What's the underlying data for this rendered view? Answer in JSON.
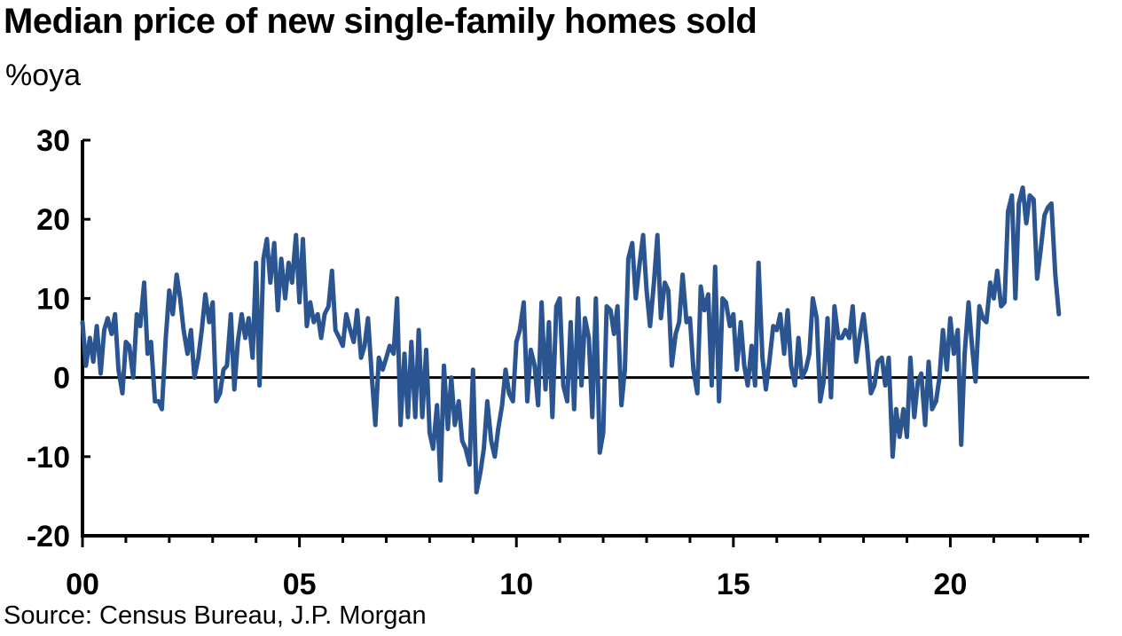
{
  "title": "Median price of new single-family homes sold",
  "subtitle": "%oya",
  "source": "Source: Census Bureau, J.P. Morgan",
  "chart_data": {
    "type": "line",
    "title": "Median price of new single-family homes sold",
    "ylabel": "%oya",
    "xlabel": "",
    "ylim": [
      -20,
      30
    ],
    "xlim": [
      2000,
      2023.2
    ],
    "yticks": [
      30,
      20,
      10,
      0,
      -10,
      -20
    ],
    "xticks": [
      {
        "value": 2000,
        "label": "00"
      },
      {
        "value": 2005,
        "label": "05"
      },
      {
        "value": 2010,
        "label": "10"
      },
      {
        "value": 2015,
        "label": "15"
      },
      {
        "value": 2020,
        "label": "20"
      }
    ],
    "grid": false,
    "legend": "none",
    "color": "#2b5591",
    "series": [
      {
        "x": [
          2000.0,
          2000.08,
          2000.17,
          2000.25,
          2000.33,
          2000.42,
          2000.5,
          2000.58,
          2000.67,
          2000.75,
          2000.83,
          2000.92,
          2001.0,
          2001.08,
          2001.17,
          2001.25,
          2001.33,
          2001.42,
          2001.5,
          2001.58,
          2001.67,
          2001.75,
          2001.83,
          2001.92,
          2002.0,
          2002.08,
          2002.17,
          2002.25,
          2002.33,
          2002.42,
          2002.5,
          2002.58,
          2002.67,
          2002.75,
          2002.83,
          2002.92,
          2003.0,
          2003.08,
          2003.17,
          2003.25,
          2003.33,
          2003.42,
          2003.5,
          2003.58,
          2003.67,
          2003.75,
          2003.83,
          2003.92,
          2004.0,
          2004.08,
          2004.17,
          2004.25,
          2004.33,
          2004.42,
          2004.5,
          2004.58,
          2004.67,
          2004.75,
          2004.83,
          2004.92,
          2005.0,
          2005.08,
          2005.17,
          2005.25,
          2005.33,
          2005.42,
          2005.5,
          2005.58,
          2005.67,
          2005.75,
          2005.83,
          2005.92,
          2006.0,
          2006.08,
          2006.17,
          2006.25,
          2006.33,
          2006.42,
          2006.5,
          2006.58,
          2006.67,
          2006.75,
          2006.83,
          2006.92,
          2007.0,
          2007.08,
          2007.17,
          2007.25,
          2007.33,
          2007.42,
          2007.5,
          2007.58,
          2007.67,
          2007.75,
          2007.83,
          2007.92,
          2008.0,
          2008.08,
          2008.17,
          2008.25,
          2008.33,
          2008.42,
          2008.5,
          2008.58,
          2008.67,
          2008.75,
          2008.83,
          2008.92,
          2009.0,
          2009.08,
          2009.17,
          2009.25,
          2009.33,
          2009.42,
          2009.5,
          2009.58,
          2009.67,
          2009.75,
          2009.83,
          2009.92,
          2010.0,
          2010.08,
          2010.17,
          2010.25,
          2010.33,
          2010.42,
          2010.5,
          2010.58,
          2010.67,
          2010.75,
          2010.83,
          2010.92,
          2011.0,
          2011.08,
          2011.17,
          2011.25,
          2011.33,
          2011.42,
          2011.5,
          2011.58,
          2011.67,
          2011.75,
          2011.83,
          2011.92,
          2012.0,
          2012.08,
          2012.17,
          2012.25,
          2012.33,
          2012.42,
          2012.5,
          2012.58,
          2012.67,
          2012.75,
          2012.83,
          2012.92,
          2013.0,
          2013.08,
          2013.17,
          2013.25,
          2013.33,
          2013.42,
          2013.5,
          2013.58,
          2013.67,
          2013.75,
          2013.83,
          2013.92,
          2014.0,
          2014.08,
          2014.17,
          2014.25,
          2014.33,
          2014.42,
          2014.5,
          2014.58,
          2014.67,
          2014.75,
          2014.83,
          2014.92,
          2015.0,
          2015.08,
          2015.17,
          2015.25,
          2015.33,
          2015.42,
          2015.5,
          2015.58,
          2015.67,
          2015.75,
          2015.83,
          2015.92,
          2016.0,
          2016.08,
          2016.17,
          2016.25,
          2016.33,
          2016.42,
          2016.5,
          2016.58,
          2016.67,
          2016.75,
          2016.83,
          2016.92,
          2017.0,
          2017.08,
          2017.17,
          2017.25,
          2017.33,
          2017.42,
          2017.5,
          2017.58,
          2017.67,
          2017.75,
          2017.83,
          2017.92,
          2018.0,
          2018.08,
          2018.17,
          2018.25,
          2018.33,
          2018.42,
          2018.5,
          2018.58,
          2018.67,
          2018.75,
          2018.83,
          2018.92,
          2019.0,
          2019.08,
          2019.17,
          2019.25,
          2019.33,
          2019.42,
          2019.5,
          2019.58,
          2019.67,
          2019.75,
          2019.83,
          2019.92,
          2020.0,
          2020.08,
          2020.17,
          2020.25,
          2020.33,
          2020.42,
          2020.5,
          2020.58,
          2020.67,
          2020.75,
          2020.83,
          2020.92,
          2021.0,
          2021.08,
          2021.17,
          2021.25,
          2021.33,
          2021.42,
          2021.5,
          2021.58,
          2021.67,
          2021.75,
          2021.83,
          2021.92,
          2022.0,
          2022.08,
          2022.17,
          2022.25,
          2022.33,
          2022.42,
          2022.5
        ],
        "y": [
          7,
          1.5,
          5,
          2,
          6.5,
          0.5,
          6,
          7.5,
          5.5,
          8,
          1,
          -2,
          4.5,
          4,
          0,
          8,
          6.5,
          12,
          3,
          4.5,
          -3,
          -3,
          -4,
          5,
          11,
          8,
          13,
          10,
          6,
          3,
          6,
          0,
          2.5,
          6,
          10.5,
          7,
          9.5,
          -3,
          -2,
          1,
          1.5,
          8,
          -1.5,
          4.5,
          8,
          5,
          7.5,
          2.5,
          14.5,
          -1,
          15,
          17.5,
          12,
          17,
          8.5,
          15,
          10,
          14.5,
          12,
          18,
          9.5,
          17.5,
          6.5,
          9.5,
          7,
          8,
          5,
          8,
          9,
          13.5,
          6,
          5,
          4,
          8,
          6,
          4.5,
          8.5,
          2.5,
          4,
          7.5,
          0,
          -6,
          2.5,
          1,
          2.5,
          4,
          3,
          10,
          -6,
          3,
          -5,
          4.5,
          -5,
          6,
          -5,
          3.5,
          -7,
          -9,
          -3.5,
          -13,
          1.5,
          -6.5,
          0,
          -6,
          -3,
          -8,
          -9,
          -11,
          1,
          -14.5,
          -12,
          -9,
          -3,
          -8,
          -10,
          -6.5,
          -3.5,
          1,
          -2,
          -3,
          4.5,
          6,
          9.5,
          -3,
          3.5,
          1.5,
          -3.5,
          9.5,
          -1.5,
          7,
          -5,
          9,
          10,
          -1,
          -3,
          7,
          -4,
          10,
          -1,
          7.5,
          5,
          -5,
          10,
          -9.5,
          -7,
          9,
          8.5,
          5.5,
          9,
          -3.5,
          1,
          15,
          17,
          10,
          14,
          18,
          11,
          6.5,
          12,
          18,
          7.5,
          12,
          11,
          1.5,
          5.5,
          7,
          13,
          7,
          7.5,
          1,
          -2,
          11.5,
          8.5,
          10.5,
          -1,
          14,
          -3,
          10,
          9.5,
          6.5,
          8,
          1,
          7,
          1.5,
          -1,
          4,
          -1,
          14.5,
          2.5,
          -1.5,
          2,
          6.5,
          6,
          8,
          3,
          8.5,
          1.5,
          -1,
          5,
          0,
          1,
          3,
          10,
          7.5,
          -3,
          -0.5,
          7.5,
          -2.5,
          9,
          5,
          5,
          6,
          5,
          9,
          2,
          5.5,
          8,
          4,
          -2,
          -1,
          2,
          2.5,
          -1,
          2.5,
          -10,
          -4,
          -7.5,
          -4,
          -7.5,
          2.5,
          -5,
          -0.5,
          0.5,
          -6,
          2,
          -4,
          -3,
          0,
          6,
          1,
          7.5,
          3,
          6,
          -8.5,
          3,
          9.5,
          4,
          -0.5,
          9,
          7.5,
          7,
          12,
          10,
          13.5,
          9,
          9.5,
          21,
          23,
          10,
          22,
          24,
          19.5,
          23,
          22.5,
          12.5,
          16,
          20.5,
          21.5,
          22,
          13,
          8
        ]
      }
    ]
  }
}
